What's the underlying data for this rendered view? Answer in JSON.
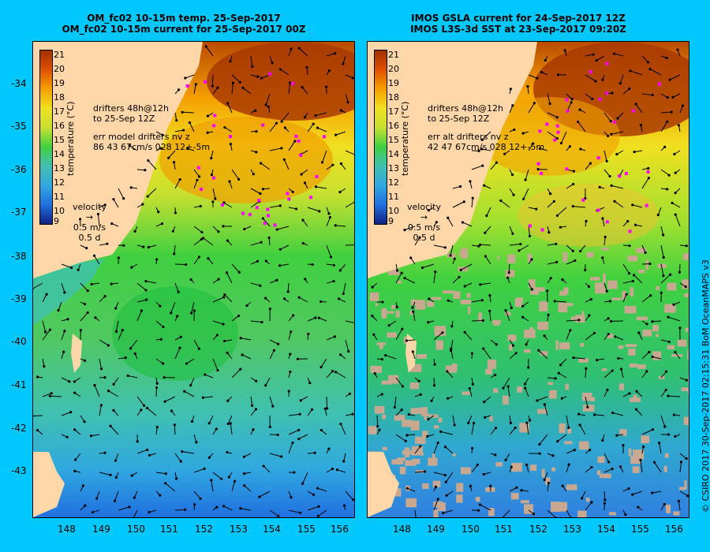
{
  "left_panel": {
    "title_line1": "OM_fc02 10-15m temp. 25-Sep-2017",
    "title_line2": "OM_fc02 10-15m current for 25-Sep-2017 00Z",
    "drifters_line1": "drifters 48h@12h",
    "drifters_line2": "to 25-Sep 12Z",
    "err_line1": "err model drifters nv z",
    "err_line2": "86 43 67cm/s 028 12+-5m",
    "velocity_label": "velocity",
    "velocity_scale": "0.5 m/s",
    "velocity_days": "0.5 d",
    "colorbar_title": "temperature (°C)"
  },
  "right_panel": {
    "title_line1": "IMOS GSLA current for 24-Sep-2017 12Z",
    "title_line2": "IMOS L3S-3d SST at 23-Sep-2017 09:20Z",
    "drifters_line1": "drifters 48h@12h",
    "drifters_line2": "to 25-Sep 12Z",
    "err_line1": "err alt drifters nv z",
    "err_line2": "42 47 67cm/s 028 12+-5m",
    "velocity_label": "velocity",
    "velocity_scale": "0.5 m/s",
    "velocity_days": "0.5 d",
    "colorbar_title": "temperature (°C)"
  },
  "colorbar_ticks": [
    "21",
    "20",
    "19",
    "18",
    "17",
    "16",
    "15",
    "14",
    "13",
    "12",
    "11",
    "10",
    "9"
  ],
  "lat_ticks": [
    "-34",
    "-35",
    "-36",
    "-37",
    "-38",
    "-39",
    "-40",
    "-41",
    "-42",
    "-43"
  ],
  "lon_ticks": [
    "148",
    "149",
    "150",
    "151",
    "152",
    "153",
    "154",
    "155",
    "156"
  ],
  "copyright": "© CSIRO 2017   30-Sep-2017 02:15:31 BoM OceanMAPS v3",
  "colors": {
    "background": "#00c8ff",
    "land": "#ffd7a8",
    "drifters": "#ff00ff",
    "no_data": "#c8a890"
  }
}
